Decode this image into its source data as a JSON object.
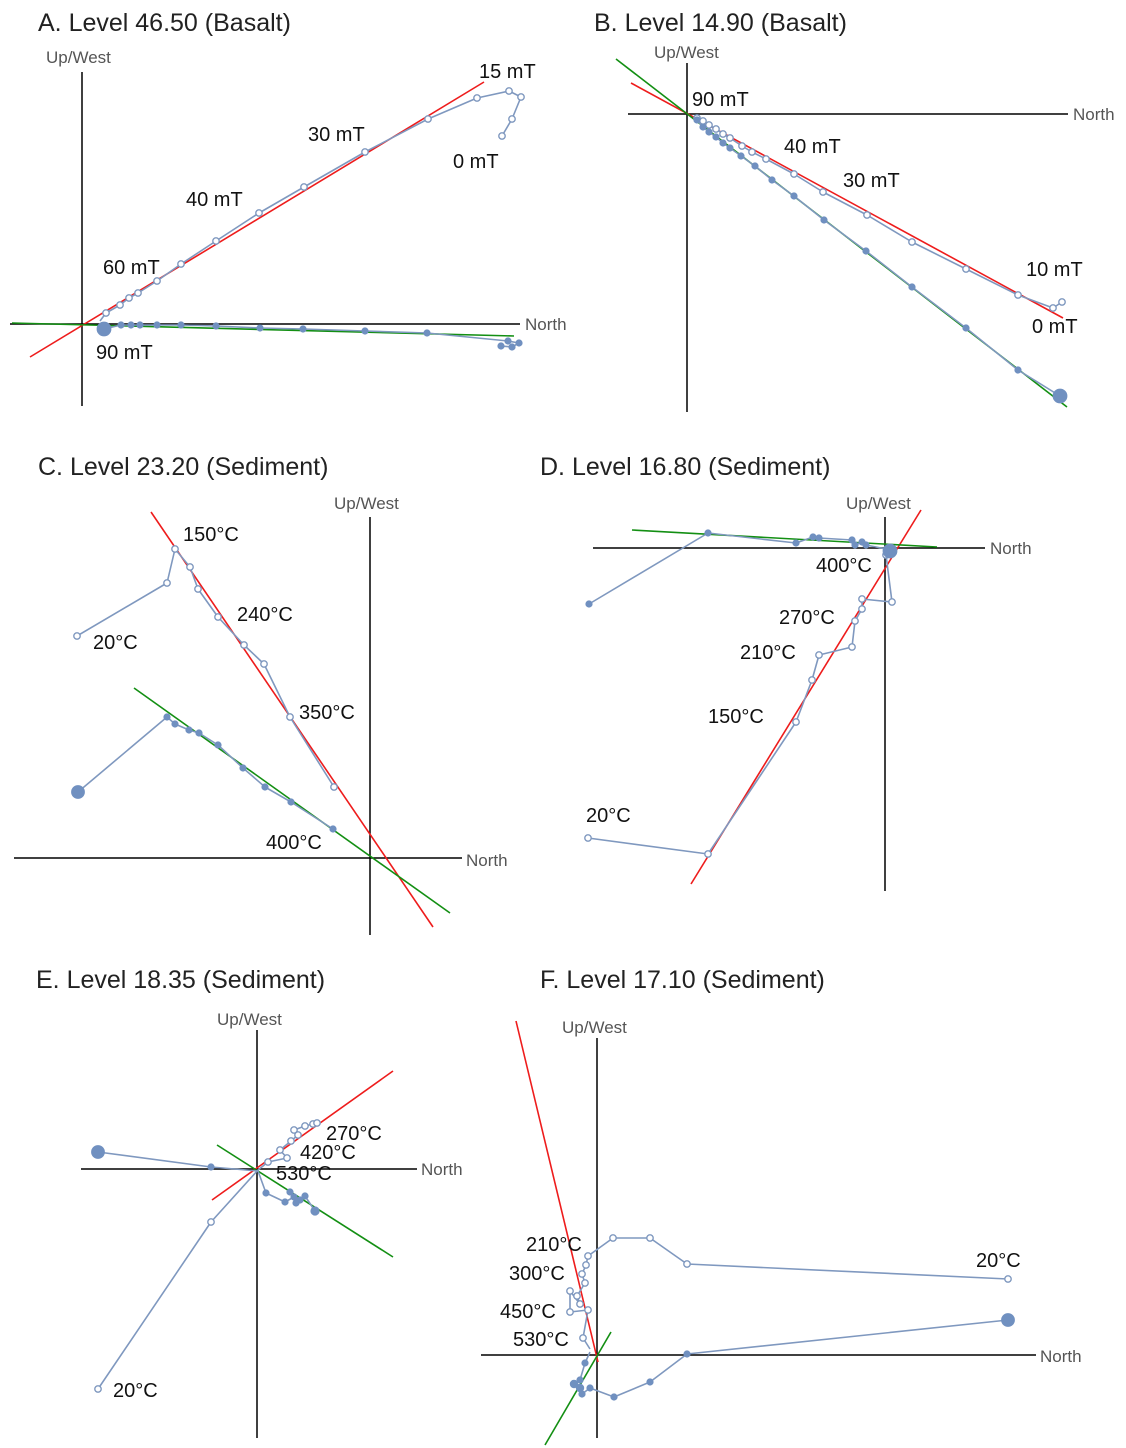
{
  "colors": {
    "red_fit": "#ee1c1c",
    "green_fit": "#138f13",
    "path": "#7f98bf",
    "filled_point": "#7090c0",
    "axis": "#000000"
  },
  "panels": [
    {
      "id": "A",
      "title": "A. Level 46.50 (Basalt)",
      "horizontal_axis_label": "North",
      "vertical_axis_label": "Up/West",
      "step_labels": [
        "15 mT",
        "30 mT",
        "0 mT",
        "40 mT",
        "60 mT",
        "90 mT"
      ]
    },
    {
      "id": "B",
      "title": "B. Level 14.90 (Basalt)",
      "horizontal_axis_label": "North",
      "vertical_axis_label": "Up/West",
      "step_labels": [
        "90 mT",
        "40 mT",
        "30 mT",
        "10 mT",
        "0 mT"
      ]
    },
    {
      "id": "C",
      "title": "C. Level 23.20 (Sediment)",
      "horizontal_axis_label": "North",
      "vertical_axis_label": "Up/West",
      "step_labels": [
        "150°C",
        "240°C",
        "20°C",
        "350°C",
        "400°C"
      ]
    },
    {
      "id": "D",
      "title": "D. Level 16.80 (Sediment)",
      "horizontal_axis_label": "North",
      "vertical_axis_label": "Up/West",
      "step_labels": [
        "400°C",
        "270°C",
        "210°C",
        "150°C",
        "20°C"
      ]
    },
    {
      "id": "E",
      "title": "E. Level 18.35 (Sediment)",
      "horizontal_axis_label": "North",
      "vertical_axis_label": "Up/West",
      "step_labels": [
        "270°C",
        "420°C",
        "530°C",
        "20°C"
      ]
    },
    {
      "id": "F",
      "title": "F. Level 17.10 (Sediment)",
      "horizontal_axis_label": "North",
      "vertical_axis_label": "Up/West",
      "step_labels": [
        "210°C",
        "300°C",
        "450°C",
        "530°C",
        "20°C"
      ]
    }
  ]
}
